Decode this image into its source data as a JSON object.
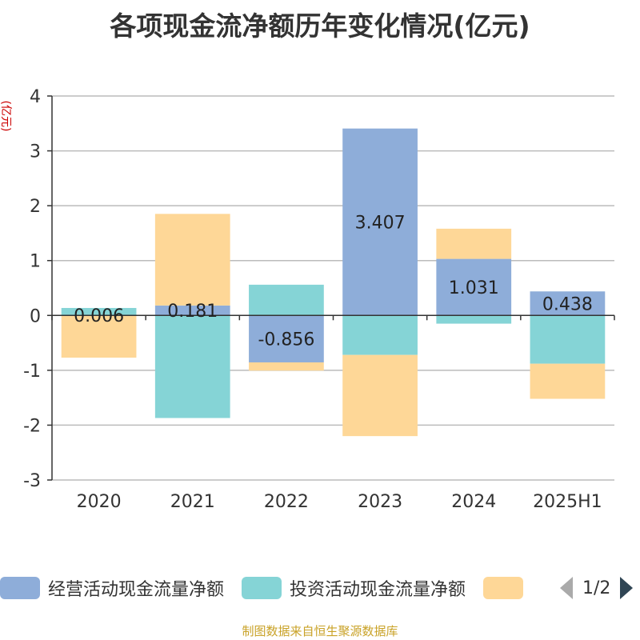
{
  "title": "各项现金流净额历年变化情况(亿元)",
  "source": "制图数据来自恒生聚源数据库",
  "legend_pager": "1/2",
  "chart_data": {
    "type": "bar",
    "stacked": true,
    "title": "各项现金流净额历年变化情况(亿元)",
    "ylabel": "(亿元)",
    "xlabel": "",
    "categories": [
      "2020",
      "2021",
      "2022",
      "2023",
      "2024",
      "2025H1"
    ],
    "ylim": [
      -3,
      4
    ],
    "yticks": [
      "4",
      "3",
      "2",
      "1",
      "0",
      "-1",
      "-2",
      "-3"
    ],
    "grid": true,
    "legend_position": "bottom",
    "series": [
      {
        "name": "经营活动现金流量净额",
        "color": "#8eadd9",
        "values": [
          0.006,
          0.181,
          -0.856,
          3.407,
          1.031,
          0.438
        ],
        "labels": [
          "0.006",
          "0.181",
          "-0.856",
          "3.407",
          "1.031",
          "0.438"
        ]
      },
      {
        "name": "投资活动现金流量净额",
        "color": "#85d4d6",
        "values": [
          0.13,
          -1.87,
          0.56,
          -0.72,
          -0.15,
          -0.88
        ]
      },
      {
        "name": "",
        "color": "#fed797",
        "values": [
          -0.77,
          1.67,
          -0.15,
          -1.48,
          0.55,
          -0.64
        ]
      }
    ]
  }
}
